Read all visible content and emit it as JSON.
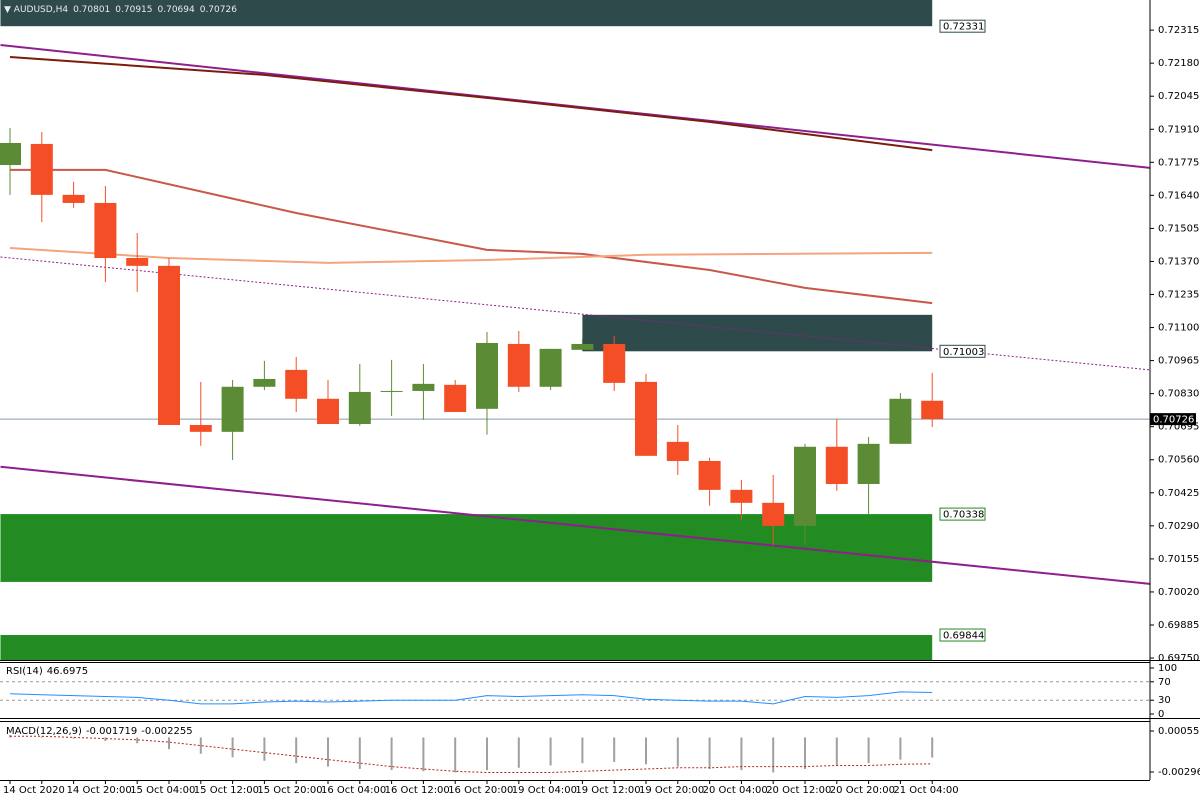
{
  "chart_data": [
    {
      "type": "candlestick",
      "title": "AUDUSD,H4",
      "categories": [
        "14 Oct 2020",
        null,
        "14 Oct 20:00",
        null,
        "15 Oct 04:00",
        null,
        "15 Oct 12:00",
        null,
        "15 Oct 20:00",
        null,
        "16 Oct 04:00",
        null,
        "16 Oct 12:00",
        null,
        "16 Oct 20:00",
        null,
        "19 Oct 04:00",
        null,
        "19 Oct 12:00",
        null,
        "19 Oct 20:00",
        null,
        "20 Oct 04:00",
        null,
        "20 Oct 12:00",
        null,
        "20 Oct 20:00",
        null,
        "21 Oct 04:00",
        null
      ],
      "open": [
        0.71764,
        0.7185,
        0.71642,
        0.71609,
        0.71384,
        0.71352,
        0.70702,
        0.70674,
        0.70858,
        0.70927,
        0.70809,
        0.70706,
        0.70837,
        0.70841,
        0.70866,
        0.70768,
        0.71033,
        0.70858,
        0.71009,
        0.71033,
        0.70878,
        0.70633,
        0.70555,
        0.70437,
        0.70384,
        0.7029,
        0.70613,
        0.70461,
        0.70625,
        0.70801
      ],
      "high": [
        0.71915,
        0.71899,
        0.71695,
        0.71678,
        0.71486,
        0.71384,
        0.70878,
        0.70886,
        0.70964,
        0.7098,
        0.70886,
        0.70951,
        0.70968,
        0.70951,
        0.70886,
        0.71082,
        0.71086,
        0.71013,
        0.71054,
        0.71066,
        0.70911,
        0.70702,
        0.70568,
        0.70478,
        0.70498,
        0.70625,
        0.70727,
        0.70653,
        0.70833,
        0.70915
      ],
      "low": [
        0.71642,
        0.71531,
        0.71589,
        0.71286,
        0.71246,
        0.70702,
        0.70617,
        0.70559,
        0.70845,
        0.70755,
        0.70706,
        0.70698,
        0.70739,
        0.70723,
        0.70755,
        0.70662,
        0.70837,
        0.70845,
        0.71005,
        0.70841,
        0.70576,
        0.70498,
        0.70372,
        0.70314,
        0.70212,
        0.70212,
        0.70433,
        0.70335,
        0.70625,
        0.70694
      ],
      "close": [
        0.71854,
        0.71642,
        0.71609,
        0.71384,
        0.71352,
        0.70702,
        0.70674,
        0.70858,
        0.7089,
        0.70809,
        0.70706,
        0.70837,
        0.70841,
        0.7087,
        0.70755,
        0.71037,
        0.70858,
        0.71013,
        0.71033,
        0.70874,
        0.70576,
        0.70555,
        0.70437,
        0.70384,
        0.7029,
        0.70613,
        0.70461,
        0.70625,
        0.70809,
        0.70726
      ],
      "up_color": "#5b8c35",
      "down_color": "#f44e26",
      "ylim": [
        0.69742,
        0.72438
      ],
      "yticks": [
        0.72315,
        {
          "value": 0.7218,
          "label": "0.72180"
        },
        0.72045,
        {
          "value": 0.7191,
          "label": "0.71910"
        },
        0.71775,
        {
          "value": 0.7164,
          "label": "0.71640"
        },
        0.71505,
        {
          "value": 0.7137,
          "label": "0.71370"
        },
        0.71235,
        {
          "value": 0.711,
          "label": "0.71100"
        },
        0.70965,
        {
          "value": 0.7083,
          "label": "0.70830"
        },
        0.70695,
        {
          "value": 0.7056,
          "label": "0.70560"
        },
        0.70425,
        {
          "value": 0.7029,
          "label": "0.70290"
        },
        0.70155,
        {
          "value": 0.7002,
          "label": "0.70020"
        },
        0.69885,
        {
          "value": 0.6975,
          "label": "0.69750"
        }
      ],
      "zones": [
        {
          "color": "#2f4a4a",
          "start": -0.3,
          "end": 29,
          "low": 0.72331,
          "high": 0.72438,
          "labeled": "low"
        },
        {
          "color": "#2f4a4a",
          "start": 18,
          "end": 29,
          "low": 0.71003,
          "high": 0.71152,
          "labeled": "low"
        },
        {
          "color": "#228b22",
          "start": -0.3,
          "end": 29,
          "low": 0.70061,
          "high": 0.70338,
          "labeled": "high"
        },
        {
          "color": "#228b22",
          "start": -0.3,
          "end": 29,
          "low": 0.69742,
          "high": 0.69844,
          "labeled": "high"
        }
      ],
      "lines": [
        {
          "color": "#8e1f8e",
          "x": [
            -0.3,
            35.85
          ],
          "values": [
            0.72254,
            0.71752
          ]
        },
        {
          "color": "#7b1c0e",
          "x": [
            0,
            8,
            15,
            22,
            29
          ],
          "values": [
            0.72205,
            0.72132,
            0.72038,
            0.7194,
            0.71825
          ]
        },
        {
          "color": "#c8584a",
          "x": [
            0,
            3,
            9,
            15,
            18,
            22,
            25,
            29
          ],
          "values": [
            0.71744,
            0.71744,
            0.71568,
            0.71417,
            0.71401,
            0.71335,
            0.71262,
            0.712
          ]
        },
        {
          "color": "#f5a47c",
          "x": [
            0,
            5,
            10,
            15,
            20,
            29
          ],
          "values": [
            0.71425,
            0.71384,
            0.71364,
            0.71376,
            0.71397,
            0.71405
          ]
        },
        {
          "color": "#8e1f8e",
          "dashed": true,
          "x": [
            -0.3,
            35.85
          ],
          "values": [
            0.71388,
            0.70927
          ]
        },
        {
          "color": "#8e1f8e",
          "x": [
            -0.3,
            35.85
          ],
          "values": [
            0.70531,
            0.70053
          ]
        }
      ]
    },
    {
      "type": "line",
      "title": "RSI(14)",
      "color": "#1e90ff",
      "ylim": [
        0,
        100
      ],
      "yticks": [
        100,
        70,
        30,
        0
      ],
      "values": [
        44,
        42,
        40,
        38,
        36,
        30,
        22,
        22,
        26,
        28,
        26,
        28,
        30,
        30,
        30,
        40,
        38,
        40,
        42,
        40,
        32,
        30,
        28,
        28,
        22,
        38,
        36,
        40,
        48,
        46.6975
      ]
    },
    {
      "type": "bar",
      "title": "MACD(12,26,9)",
      "color": "#a0a0a0",
      "signal_color": "#b22222",
      "ylim": [
        -0.003647,
        0.001324
      ],
      "yticks": [
        0.000553,
        -0.002961
      ],
      "values": [
        0.0002,
        0.0001,
        -0.0001,
        -0.0003,
        -0.0005,
        -0.001,
        -0.0014,
        -0.0017,
        -0.002,
        -0.0022,
        -0.0025,
        -0.0027,
        -0.0028,
        -0.0029,
        -0.003,
        -0.0028,
        -0.0026,
        -0.0024,
        -0.0022,
        -0.0021,
        -0.0023,
        -0.0025,
        -0.0027,
        -0.0028,
        -0.003,
        -0.0027,
        -0.0024,
        -0.0022,
        -0.0019,
        -0.001719
      ],
      "signal": [
        0.0001,
        0.0001,
        0,
        -0.0001,
        -0.0002,
        -0.0004,
        -0.0007,
        -0.001,
        -0.0013,
        -0.0016,
        -0.0019,
        -0.0022,
        -0.0025,
        -0.0027,
        -0.0029,
        -0.003,
        -0.003,
        -0.003,
        -0.0029,
        -0.0028,
        -0.0027,
        -0.0026,
        -0.0026,
        -0.0025,
        -0.0025,
        -0.0025,
        -0.0024,
        -0.0024,
        -0.0023,
        -0.002255
      ]
    }
  ]
}
